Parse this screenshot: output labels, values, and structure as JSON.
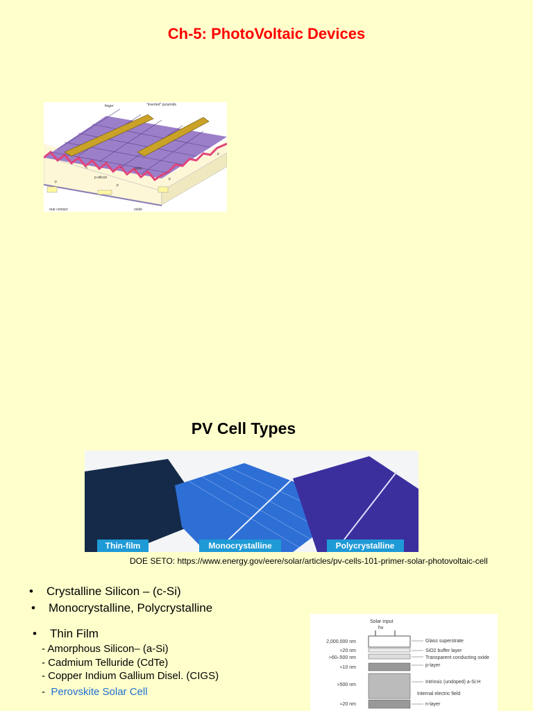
{
  "header": {
    "title": "Ch-5: PhotoVoltaic Devices"
  },
  "figure1": {
    "labels": [
      "finger",
      "\"inverted\" pyramids",
      "p-silicon",
      "oxide",
      "rear contact",
      "oxide",
      "n",
      "p",
      "p",
      "p",
      "p"
    ]
  },
  "section": {
    "title": "PV Cell Types"
  },
  "figure2": {
    "labels": [
      "Thin-film",
      "Monocrystalline",
      "Polycrystalline"
    ]
  },
  "caption": "DOE SETO:  https://www.energy.gov/eere/solar/articles/pv-cells-101-primer-solar-photovoltaic-cell",
  "bullets": [
    {
      "title": "Crystalline Silicon – (c-Si)",
      "lines": [
        "Monocrystalline,  Polycrystalline"
      ]
    },
    {
      "title": "Thin Film",
      "lines": [
        "-  Amorphous Silicon– (a-Si)",
        "- Cadmium Telluride (CdTe)",
        "-  Copper Indium Gallium Disel. (CIGS)"
      ],
      "last_prefix": "-  ",
      "link": "Perovskite Solar Cell"
    }
  ],
  "figure3": {
    "top": "Solar input",
    "photon": "hν",
    "thicknesses": [
      "2,000,000 nm",
      "≈20 nm",
      "≈60–500 nm",
      "≈10 nm",
      "≈500 nm",
      "≈20 nm"
    ],
    "layers": [
      "Glass superstrate",
      "SiO2 buffer layer",
      "Transparent conducting oxide",
      "p-layer",
      "Intrinsic (undoped) a-Si:H",
      "Internal electric field",
      "n-layer"
    ]
  }
}
